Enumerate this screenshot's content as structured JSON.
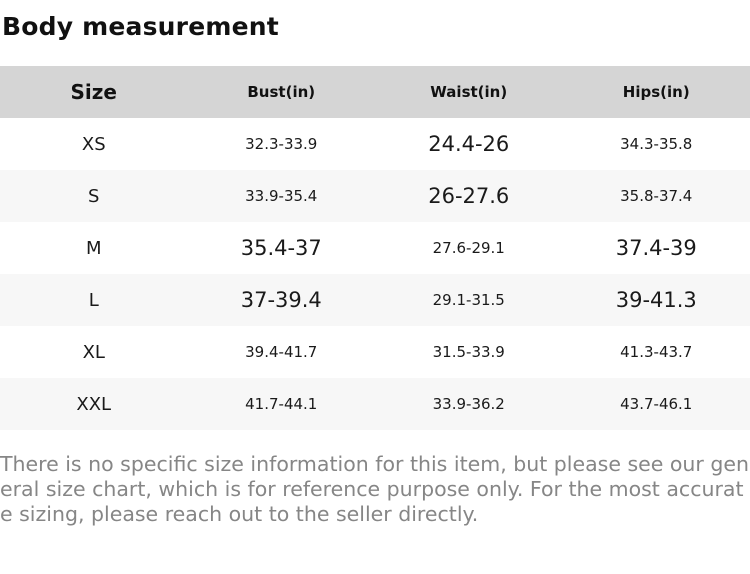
{
  "page": {
    "title": "Body measurement",
    "disclaimer": "There is no specific size information for this item, but please see our general size chart, which is for reference purpose only. For the most accurate sizing, please reach out to the seller directly."
  },
  "colors": {
    "header_bg": "#d5d5d5",
    "row_alt_bg": "#f7f7f7",
    "text": "#1a1a1a",
    "disclaimer_text": "#868686"
  },
  "table": {
    "columns": [
      "Size",
      "Bust(in)",
      "Waist(in)",
      "Hips(in)"
    ],
    "rows": [
      {
        "size": "XS",
        "bust": "32.3-33.9",
        "waist": "24.4-26",
        "hips": "34.3-35.8"
      },
      {
        "size": "S",
        "bust": "33.9-35.4",
        "waist": "26-27.6",
        "hips": "35.8-37.4"
      },
      {
        "size": "M",
        "bust": "35.4-37",
        "waist": "27.6-29.1",
        "hips": "37.4-39"
      },
      {
        "size": "L",
        "bust": "37-39.4",
        "waist": "29.1-31.5",
        "hips": "39-41.3"
      },
      {
        "size": "XL",
        "bust": "39.4-41.7",
        "waist": "31.5-33.9",
        "hips": "41.3-43.7"
      },
      {
        "size": "XXL",
        "bust": "41.7-44.1",
        "waist": "33.9-36.2",
        "hips": "43.7-46.1"
      }
    ]
  }
}
